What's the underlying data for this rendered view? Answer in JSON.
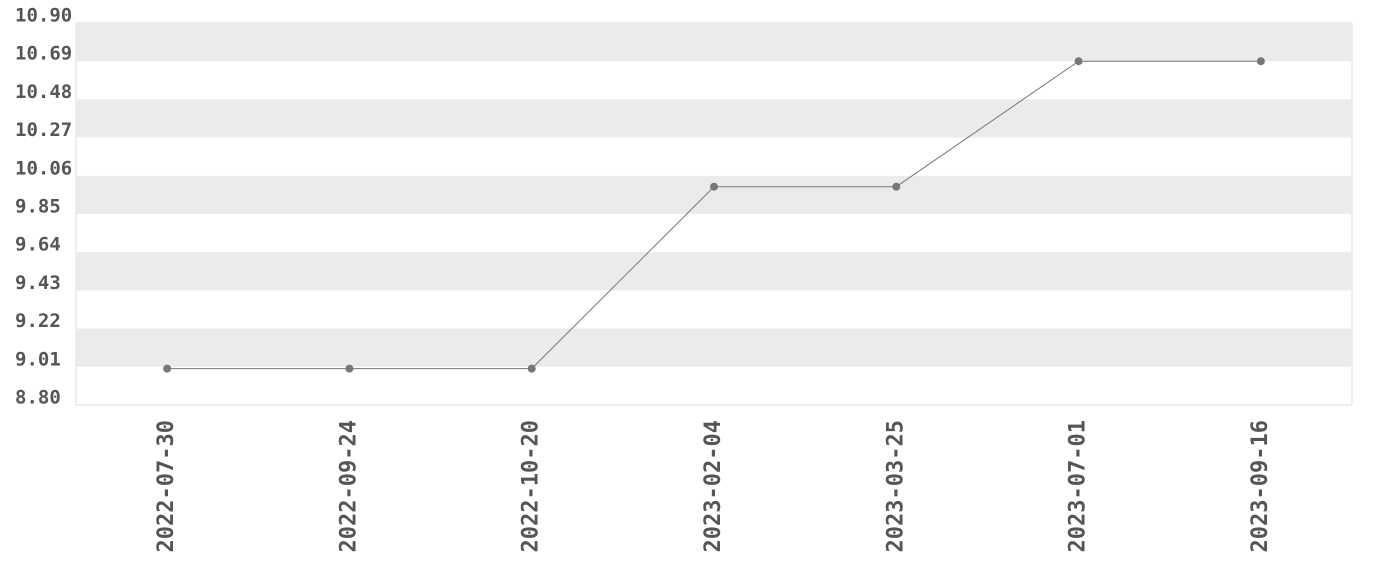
{
  "chart_data": {
    "type": "line",
    "categories": [
      "2022-07-30",
      "2022-09-24",
      "2022-10-20",
      "2023-02-04",
      "2023-03-25",
      "2023-07-01",
      "2023-09-16"
    ],
    "values": [
      9.0,
      9.0,
      9.0,
      10.0,
      10.0,
      10.69,
      10.69
    ],
    "color": "#777777",
    "ylim": [
      8.8,
      10.9
    ],
    "yticks": [
      {
        "value": 8.8,
        "label": "8.80"
      },
      9.01,
      9.22,
      9.43,
      9.64,
      9.85,
      10.06,
      10.27,
      10.48,
      10.69,
      {
        "value": 10.9,
        "label": "10.90"
      }
    ],
    "grid": true
  }
}
